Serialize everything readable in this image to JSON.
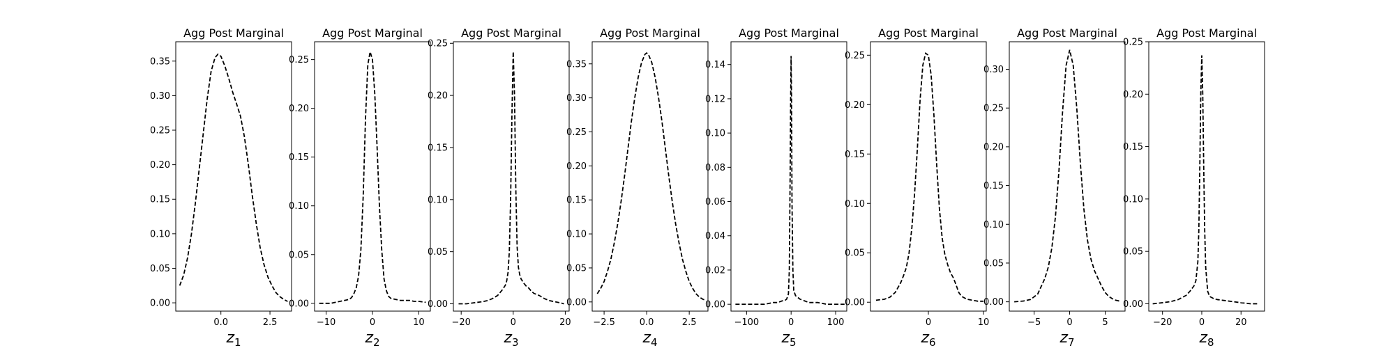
{
  "chart_data": [
    {
      "type": "line",
      "title": "Agg Post Marginal",
      "xlabel": "z",
      "xlabel_sub": "1",
      "xlim": [
        -2.3,
        3.6
      ],
      "ylim": [
        -0.012,
        0.378
      ],
      "xticks": [
        0.0,
        2.5
      ],
      "xticklabels": [
        "0.0",
        "2.5"
      ],
      "yticks": [
        0.0,
        0.05,
        0.1,
        0.15,
        0.2,
        0.25,
        0.3,
        0.35
      ],
      "yticklabels": [
        "0.00",
        "0.05",
        "0.10",
        "0.15",
        "0.20",
        "0.25",
        "0.30",
        "0.35"
      ],
      "series": [
        {
          "line_style": "dashed",
          "color": "#000000",
          "x": [
            -2.1,
            -1.9,
            -1.7,
            -1.5,
            -1.3,
            -1.1,
            -0.9,
            -0.7,
            -0.5,
            -0.3,
            -0.15,
            0.0,
            0.2,
            0.4,
            0.6,
            0.8,
            1.0,
            1.2,
            1.4,
            1.6,
            1.8,
            2.0,
            2.2,
            2.4,
            2.6,
            2.8,
            3.0,
            3.2,
            3.4
          ],
          "y": [
            0.025,
            0.04,
            0.065,
            0.1,
            0.145,
            0.195,
            0.245,
            0.295,
            0.335,
            0.355,
            0.36,
            0.357,
            0.343,
            0.325,
            0.305,
            0.288,
            0.27,
            0.24,
            0.2,
            0.155,
            0.115,
            0.08,
            0.055,
            0.037,
            0.025,
            0.015,
            0.009,
            0.005,
            0.002
          ]
        }
      ]
    },
    {
      "type": "line",
      "title": "Agg Post Marginal",
      "xlabel": "z",
      "xlabel_sub": "2",
      "xlim": [
        -12.5,
        12.5
      ],
      "ylim": [
        -0.008,
        0.2683
      ],
      "xticks": [
        -10,
        0,
        10
      ],
      "xticklabels": [
        "−10",
        "0",
        "10"
      ],
      "yticks": [
        0.0,
        0.05,
        0.1,
        0.15,
        0.2,
        0.25
      ],
      "yticklabels": [
        "0.00",
        "0.05",
        "0.10",
        "0.15",
        "0.20",
        "0.25"
      ],
      "series": [
        {
          "line_style": "dashed",
          "color": "#000000",
          "x": [
            -11.5,
            -10,
            -9,
            -8,
            -7,
            -6,
            -5,
            -4.5,
            -4,
            -3.5,
            -3,
            -2.5,
            -2,
            -1.5,
            -1,
            -0.5,
            0,
            0.5,
            1,
            1.5,
            2,
            2.5,
            3,
            3.5,
            4,
            5,
            6,
            7,
            8,
            9,
            10,
            11.5
          ],
          "y": [
            0.0,
            0.0,
            0.0,
            0.001,
            0.002,
            0.003,
            0.004,
            0.006,
            0.01,
            0.016,
            0.028,
            0.055,
            0.11,
            0.19,
            0.245,
            0.258,
            0.25,
            0.215,
            0.16,
            0.1,
            0.055,
            0.025,
            0.013,
            0.007,
            0.005,
            0.004,
            0.003,
            0.003,
            0.003,
            0.002,
            0.002,
            0.001
          ]
        }
      ]
    },
    {
      "type": "line",
      "title": "Agg Post Marginal",
      "xlabel": "z",
      "xlabel_sub": "3",
      "xlim": [
        -23,
        21.5
      ],
      "ylim": [
        -0.007,
        0.2515
      ],
      "xticks": [
        -20,
        0,
        20
      ],
      "xticklabels": [
        "−20",
        "0",
        "20"
      ],
      "yticks": [
        0.0,
        0.05,
        0.1,
        0.15,
        0.2,
        0.25
      ],
      "yticklabels": [
        "0.00",
        "0.05",
        "0.10",
        "0.15",
        "0.20",
        "0.25"
      ],
      "series": [
        {
          "line_style": "dashed",
          "color": "#000000",
          "x": [
            -21,
            -18,
            -15,
            -12,
            -10,
            -8,
            -6,
            -5,
            -4,
            -3,
            -2.5,
            -2,
            -1.5,
            -1,
            -0.5,
            0,
            0.5,
            1,
            1.5,
            2,
            2.5,
            3,
            4,
            5,
            6,
            7,
            8,
            10,
            12,
            14,
            16,
            18,
            19.5
          ],
          "y": [
            0.0,
            0.0,
            0.001,
            0.002,
            0.003,
            0.005,
            0.008,
            0.011,
            0.014,
            0.018,
            0.022,
            0.03,
            0.05,
            0.1,
            0.18,
            0.242,
            0.2,
            0.11,
            0.055,
            0.035,
            0.028,
            0.024,
            0.02,
            0.017,
            0.015,
            0.012,
            0.01,
            0.008,
            0.005,
            0.003,
            0.002,
            0.001,
            0.0
          ]
        }
      ]
    },
    {
      "type": "line",
      "title": "Agg Post Marginal",
      "xlabel": "z",
      "xlabel_sub": "4",
      "xlim": [
        -3.2,
        3.6
      ],
      "ylim": [
        -0.0135,
        0.3825
      ],
      "xticks": [
        -2.5,
        0.0,
        2.5
      ],
      "xticklabels": [
        "−2.5",
        "0.0",
        "2.5"
      ],
      "yticks": [
        0.0,
        0.05,
        0.1,
        0.15,
        0.2,
        0.25,
        0.3,
        0.35
      ],
      "yticklabels": [
        "0.00",
        "0.05",
        "0.10",
        "0.15",
        "0.20",
        "0.25",
        "0.30",
        "0.35"
      ],
      "series": [
        {
          "line_style": "dashed",
          "color": "#000000",
          "x": [
            -2.9,
            -2.7,
            -2.5,
            -2.3,
            -2.1,
            -1.9,
            -1.7,
            -1.5,
            -1.3,
            -1.1,
            -0.9,
            -0.7,
            -0.5,
            -0.3,
            -0.1,
            0.0,
            0.1,
            0.3,
            0.5,
            0.7,
            0.9,
            1.1,
            1.3,
            1.5,
            1.7,
            1.9,
            2.1,
            2.3,
            2.5,
            2.7,
            2.9,
            3.1,
            3.3,
            3.4
          ],
          "y": [
            0.012,
            0.02,
            0.03,
            0.045,
            0.063,
            0.087,
            0.115,
            0.148,
            0.185,
            0.225,
            0.265,
            0.3,
            0.33,
            0.352,
            0.364,
            0.366,
            0.364,
            0.352,
            0.33,
            0.3,
            0.265,
            0.225,
            0.185,
            0.148,
            0.115,
            0.087,
            0.063,
            0.045,
            0.03,
            0.02,
            0.012,
            0.007,
            0.004,
            0.003
          ]
        }
      ]
    },
    {
      "type": "line",
      "title": "Agg Post Marginal",
      "xlabel": "z",
      "xlabel_sub": "5",
      "xlim": [
        -135,
        125
      ],
      "ylim": [
        -0.004,
        0.1533
      ],
      "xticks": [
        -100,
        0,
        100
      ],
      "xticklabels": [
        "−100",
        "0",
        "100"
      ],
      "yticks": [
        0.0,
        0.02,
        0.04,
        0.06,
        0.08,
        0.1,
        0.12,
        0.14
      ],
      "yticklabels": [
        "0.00",
        "0.02",
        "0.04",
        "0.06",
        "0.08",
        "0.10",
        "0.12",
        "0.14"
      ],
      "series": [
        {
          "line_style": "dashed",
          "color": "#000000",
          "x": [
            -125,
            -100,
            -80,
            -60,
            -40,
            -30,
            -20,
            -15,
            -10,
            -6,
            -4,
            -2,
            -1,
            0,
            1,
            2,
            4,
            6,
            10,
            15,
            20,
            30,
            40,
            60,
            80,
            100,
            120
          ],
          "y": [
            0.0,
            0.0,
            0.0,
            0.0,
            0.001,
            0.001,
            0.002,
            0.002,
            0.003,
            0.006,
            0.02,
            0.08,
            0.12,
            0.145,
            0.12,
            0.06,
            0.02,
            0.008,
            0.005,
            0.004,
            0.003,
            0.002,
            0.001,
            0.001,
            0.0,
            0.0,
            0.0
          ]
        }
      ]
    },
    {
      "type": "line",
      "title": "Agg Post Marginal",
      "xlabel": "z",
      "xlabel_sub": "6",
      "xlim": [
        -10.5,
        10.5
      ],
      "ylim": [
        -0.009,
        0.2636
      ],
      "xticks": [
        0,
        10
      ],
      "xticklabels": [
        "0",
        "10"
      ],
      "yticks": [
        0.0,
        0.05,
        0.1,
        0.15,
        0.2,
        0.25
      ],
      "yticklabels": [
        "0.00",
        "0.05",
        "0.10",
        "0.15",
        "0.20",
        "0.25"
      ],
      "series": [
        {
          "line_style": "dashed",
          "color": "#000000",
          "x": [
            -9.5,
            -8,
            -7,
            -6,
            -5,
            -4.5,
            -4,
            -3.5,
            -3,
            -2.5,
            -2,
            -1.5,
            -1,
            -0.5,
            0,
            0.5,
            1,
            1.5,
            2,
            2.5,
            3,
            3.5,
            4,
            4.5,
            5,
            5.5,
            6,
            7,
            8,
            9,
            10
          ],
          "y": [
            0.002,
            0.003,
            0.005,
            0.01,
            0.02,
            0.027,
            0.035,
            0.05,
            0.075,
            0.11,
            0.155,
            0.205,
            0.24,
            0.252,
            0.25,
            0.23,
            0.19,
            0.14,
            0.095,
            0.065,
            0.048,
            0.038,
            0.03,
            0.025,
            0.018,
            0.01,
            0.006,
            0.003,
            0.002,
            0.001,
            0.001
          ]
        }
      ]
    },
    {
      "type": "line",
      "title": "Agg Post Marginal",
      "xlabel": "z",
      "xlabel_sub": "7",
      "xlim": [
        -8.5,
        7.8
      ],
      "ylim": [
        -0.012,
        0.3355
      ],
      "xticks": [
        -5,
        0,
        5
      ],
      "xticklabels": [
        "−5",
        "0",
        "5"
      ],
      "yticks": [
        0.0,
        0.05,
        0.1,
        0.15,
        0.2,
        0.25,
        0.3
      ],
      "yticklabels": [
        "0.00",
        "0.05",
        "0.10",
        "0.15",
        "0.20",
        "0.25",
        "0.30"
      ],
      "series": [
        {
          "line_style": "dashed",
          "color": "#000000",
          "x": [
            -7.8,
            -6.5,
            -5.5,
            -4.5,
            -4,
            -3.5,
            -3,
            -2.5,
            -2,
            -1.5,
            -1,
            -0.5,
            0,
            0.5,
            1,
            1.5,
            2,
            2.5,
            3,
            3.5,
            4,
            4.5,
            5,
            5.5,
            6,
            6.5,
            7
          ],
          "y": [
            0.0,
            0.001,
            0.003,
            0.01,
            0.02,
            0.03,
            0.045,
            0.07,
            0.11,
            0.17,
            0.245,
            0.305,
            0.325,
            0.305,
            0.25,
            0.18,
            0.12,
            0.08,
            0.055,
            0.04,
            0.03,
            0.02,
            0.012,
            0.007,
            0.004,
            0.002,
            0.001
          ]
        }
      ]
    },
    {
      "type": "line",
      "title": "Agg Post Marginal",
      "xlabel": "z",
      "xlabel_sub": "8",
      "xlim": [
        -27,
        32
      ],
      "ylim": [
        -0.007,
        0.25
      ],
      "xticks": [
        -20,
        0,
        20
      ],
      "xticklabels": [
        "−20",
        "0",
        "20"
      ],
      "yticks": [
        0.0,
        0.05,
        0.1,
        0.15,
        0.2,
        0.25
      ],
      "yticklabels": [
        "0.00",
        "0.05",
        "0.10",
        "0.15",
        "0.20",
        "0.25"
      ],
      "series": [
        {
          "line_style": "dashed",
          "color": "#000000",
          "x": [
            -25,
            -20,
            -16,
            -12,
            -8,
            -6,
            -4,
            -3,
            -2,
            -1.5,
            -1,
            -0.5,
            0,
            0.5,
            1,
            1.5,
            2,
            3,
            4,
            6,
            8,
            12,
            16,
            20,
            25,
            29
          ],
          "y": [
            0.0,
            0.001,
            0.002,
            0.004,
            0.008,
            0.012,
            0.017,
            0.022,
            0.04,
            0.07,
            0.13,
            0.2,
            0.237,
            0.2,
            0.13,
            0.07,
            0.035,
            0.012,
            0.007,
            0.005,
            0.004,
            0.003,
            0.002,
            0.001,
            0.0,
            0.0
          ]
        }
      ]
    }
  ]
}
